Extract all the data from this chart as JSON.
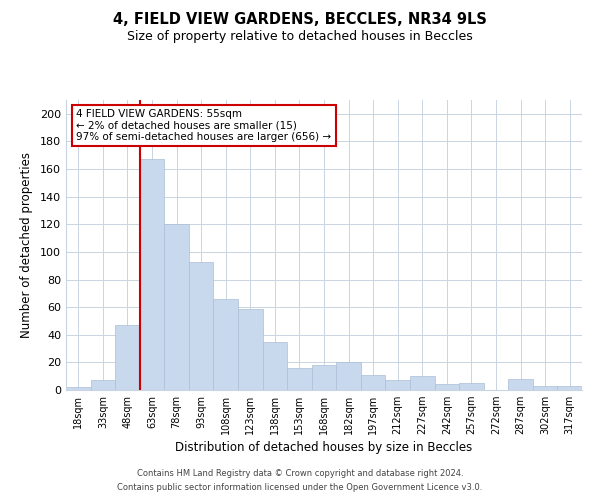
{
  "title": "4, FIELD VIEW GARDENS, BECCLES, NR34 9LS",
  "subtitle": "Size of property relative to detached houses in Beccles",
  "xlabel": "Distribution of detached houses by size in Beccles",
  "ylabel": "Number of detached properties",
  "bar_color": "#c8d8ed",
  "bar_edge_color": "#aabfd6",
  "categories": [
    "18sqm",
    "33sqm",
    "48sqm",
    "63sqm",
    "78sqm",
    "93sqm",
    "108sqm",
    "123sqm",
    "138sqm",
    "153sqm",
    "168sqm",
    "182sqm",
    "197sqm",
    "212sqm",
    "227sqm",
    "242sqm",
    "257sqm",
    "272sqm",
    "287sqm",
    "302sqm",
    "317sqm"
  ],
  "values": [
    2,
    7,
    47,
    167,
    120,
    93,
    66,
    59,
    35,
    16,
    18,
    20,
    11,
    7,
    10,
    4,
    5,
    0,
    8,
    3,
    3
  ],
  "ylim": [
    0,
    210
  ],
  "yticks": [
    0,
    20,
    40,
    60,
    80,
    100,
    120,
    140,
    160,
    180,
    200
  ],
  "vline_color": "#cc0000",
  "annotation_title": "4 FIELD VIEW GARDENS: 55sqm",
  "annotation_line1": "← 2% of detached houses are smaller (15)",
  "annotation_line2": "97% of semi-detached houses are larger (656) →",
  "annotation_box_color": "#ffffff",
  "annotation_box_edge_color": "#cc0000",
  "footer_line1": "Contains HM Land Registry data © Crown copyright and database right 2024.",
  "footer_line2": "Contains public sector information licensed under the Open Government Licence v3.0.",
  "background_color": "#ffffff",
  "grid_color": "#c8d4e0"
}
